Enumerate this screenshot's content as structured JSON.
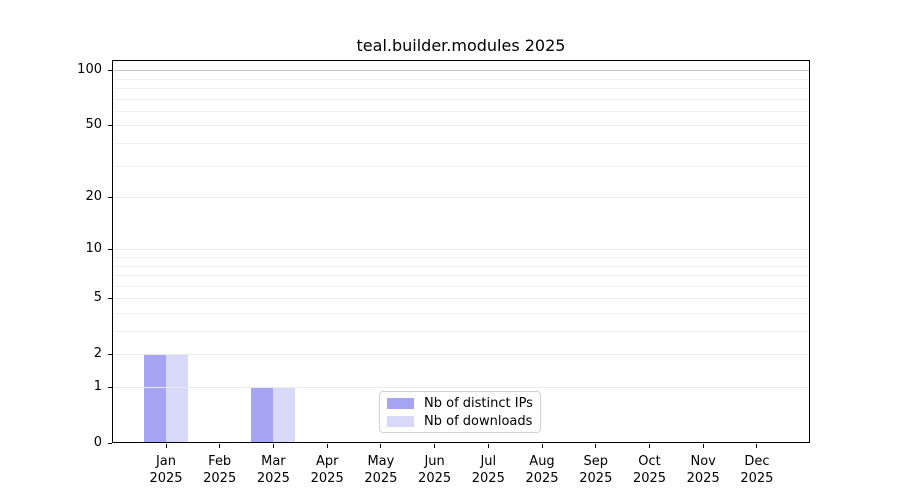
{
  "chart_data": {
    "type": "bar",
    "title": "teal.builder.modules 2025",
    "x_months": [
      "Jan",
      "Feb",
      "Mar",
      "Apr",
      "May",
      "Jun",
      "Jul",
      "Aug",
      "Sep",
      "Oct",
      "Nov",
      "Dec"
    ],
    "x_year": "2025",
    "series": [
      {
        "name": "Nb of distinct IPs",
        "color": "#a5a5f3",
        "values": [
          2,
          0,
          1,
          0,
          0,
          0,
          0,
          0,
          0,
          0,
          0,
          0
        ]
      },
      {
        "name": "Nb of downloads",
        "color": "#d8d8f8",
        "values": [
          2,
          0,
          1,
          0,
          0,
          0,
          0,
          0,
          0,
          0,
          0,
          0
        ]
      }
    ],
    "yscale": "log1p",
    "ylim": [
      0,
      114
    ],
    "ytick_values": [
      0,
      1,
      2,
      5,
      10,
      20,
      50,
      100
    ],
    "ygrid_minor_values": [
      3,
      4,
      6,
      7,
      8,
      9,
      30,
      40,
      60,
      70,
      80,
      90
    ],
    "grid": "horizontal major+minor, no vertical grid",
    "grid_colors": {
      "minor": "#f1f1f1",
      "major": "#e9e9e9",
      "top_major_100": "#c8c8c8"
    },
    "legend": {
      "position": "inside-bottom-center",
      "entries": [
        "Nb of distinct IPs",
        "Nb of downloads"
      ]
    },
    "bars_drawn": [
      {
        "month": "Jan 2025",
        "nb_distinct_ips": 2,
        "nb_downloads": 2
      },
      {
        "month": "Mar 2025",
        "nb_distinct_ips": 1,
        "nb_downloads": 1
      }
    ]
  }
}
